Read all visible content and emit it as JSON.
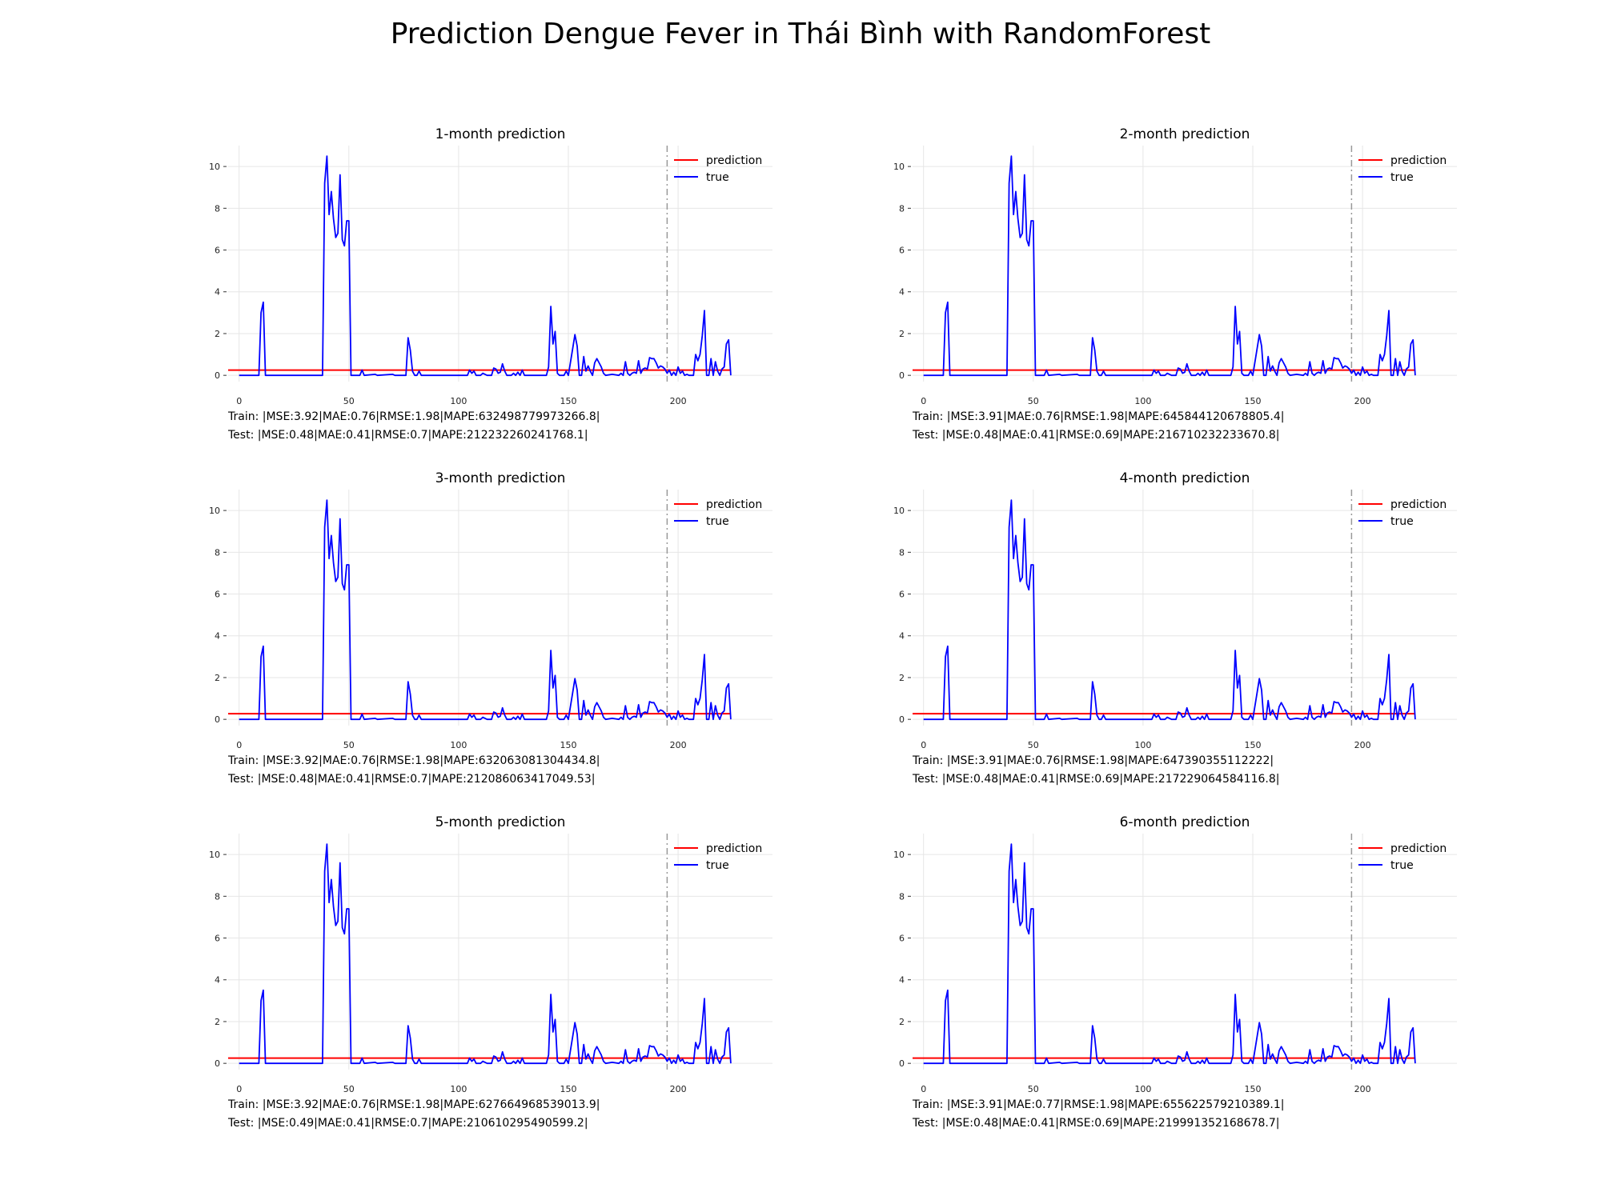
{
  "title": "Prediction Dengue Fever in Thái Bình with RandomForest",
  "colors": {
    "prediction": "#ff0000",
    "true": "#0000ff",
    "grid": "#e6e6e6",
    "split": "#999999"
  },
  "legend": [
    "prediction",
    "true"
  ],
  "chart_data": [
    {
      "type": "line",
      "title": "1-month prediction",
      "xlim": [
        -5,
        243
      ],
      "ylim": [
        -0.3,
        11
      ],
      "xticks": [
        0,
        50,
        100,
        150,
        200
      ],
      "yticks": [
        0,
        2,
        4,
        6,
        8,
        10
      ],
      "split_x": 195,
      "prediction_value": 0.25,
      "train_metrics": "Train: |MSE:3.92|MAE:0.76|RMSE:1.98|MAPE:632498779973266.8|",
      "test_metrics": "Test: |MSE:0.48|MAE:0.41|RMSE:0.7|MAPE:212232260241768.1|"
    },
    {
      "type": "line",
      "title": "2-month prediction",
      "xlim": [
        -5,
        243
      ],
      "ylim": [
        -0.3,
        11
      ],
      "xticks": [
        0,
        50,
        100,
        150,
        200
      ],
      "yticks": [
        0,
        2,
        4,
        6,
        8,
        10
      ],
      "split_x": 195,
      "prediction_value": 0.25,
      "train_metrics": "Train: |MSE:3.91|MAE:0.76|RMSE:1.98|MAPE:645844120678805.4|",
      "test_metrics": "Test: |MSE:0.48|MAE:0.41|RMSE:0.69|MAPE:216710232233670.8|"
    },
    {
      "type": "line",
      "title": "3-month prediction",
      "xlim": [
        -5,
        243
      ],
      "ylim": [
        -0.3,
        11
      ],
      "xticks": [
        0,
        50,
        100,
        150,
        200
      ],
      "yticks": [
        0,
        2,
        4,
        6,
        8,
        10
      ],
      "split_x": 195,
      "prediction_value": 0.27,
      "train_metrics": "Train: |MSE:3.92|MAE:0.76|RMSE:1.98|MAPE:632063081304434.8|",
      "test_metrics": "Test: |MSE:0.48|MAE:0.41|RMSE:0.7|MAPE:212086063417049.53|"
    },
    {
      "type": "line",
      "title": "4-month prediction",
      "xlim": [
        -5,
        243
      ],
      "ylim": [
        -0.3,
        11
      ],
      "xticks": [
        0,
        50,
        100,
        150,
        200
      ],
      "yticks": [
        0,
        2,
        4,
        6,
        8,
        10
      ],
      "split_x": 195,
      "prediction_value": 0.27,
      "train_metrics": "Train: |MSE:3.91|MAE:0.76|RMSE:1.98|MAPE:647390355112222|",
      "test_metrics": "Test: |MSE:0.48|MAE:0.41|RMSE:0.69|MAPE:217229064584116.8|"
    },
    {
      "type": "line",
      "title": "5-month prediction",
      "xlim": [
        -5,
        243
      ],
      "ylim": [
        -0.3,
        11
      ],
      "xticks": [
        0,
        50,
        100,
        150,
        200
      ],
      "yticks": [
        0,
        2,
        4,
        6,
        8,
        10
      ],
      "split_x": 195,
      "prediction_value": 0.25,
      "train_metrics": "Train: |MSE:3.92|MAE:0.76|RMSE:1.98|MAPE:627664968539013.9|",
      "test_metrics": "Test: |MSE:0.49|MAE:0.41|RMSE:0.7|MAPE:210610295490599.2|"
    },
    {
      "type": "line",
      "title": "6-month prediction",
      "xlim": [
        -5,
        243
      ],
      "ylim": [
        -0.3,
        11
      ],
      "xticks": [
        0,
        50,
        100,
        150,
        200
      ],
      "yticks": [
        0,
        2,
        4,
        6,
        8,
        10
      ],
      "split_x": 195,
      "prediction_value": 0.25,
      "train_metrics": "Train: |MSE:3.91|MAE:0.77|RMSE:1.98|MAPE:655622579210389.1|",
      "test_metrics": "Test: |MSE:0.48|MAE:0.41|RMSE:0.69|MAPE:219991352168678.7|"
    }
  ],
  "true_series": [
    [
      0,
      0
    ],
    [
      9,
      0
    ],
    [
      10,
      3.0
    ],
    [
      11,
      3.5
    ],
    [
      12,
      0
    ],
    [
      38,
      0
    ],
    [
      39,
      9.2
    ],
    [
      40,
      10.5
    ],
    [
      41,
      7.7
    ],
    [
      42,
      8.8
    ],
    [
      43,
      7.5
    ],
    [
      44,
      6.6
    ],
    [
      45,
      6.8
    ],
    [
      46,
      9.6
    ],
    [
      47,
      6.5
    ],
    [
      48,
      6.2
    ],
    [
      49,
      7.4
    ],
    [
      50,
      7.4
    ],
    [
      51,
      0
    ],
    [
      55,
      0
    ],
    [
      56,
      0.25
    ],
    [
      57,
      0
    ],
    [
      62,
      0.05
    ],
    [
      63,
      0
    ],
    [
      70,
      0.05
    ],
    [
      71,
      0
    ],
    [
      76,
      0
    ],
    [
      77,
      1.8
    ],
    [
      78,
      1.2
    ],
    [
      79,
      0.2
    ],
    [
      80,
      0
    ],
    [
      81,
      0
    ],
    [
      82,
      0.2
    ],
    [
      83,
      0
    ],
    [
      104,
      0
    ],
    [
      105,
      0.25
    ],
    [
      106,
      0.1
    ],
    [
      107,
      0.2
    ],
    [
      108,
      0
    ],
    [
      110,
      0
    ],
    [
      111,
      0.1
    ],
    [
      113,
      0
    ],
    [
      115,
      0
    ],
    [
      116,
      0.35
    ],
    [
      117,
      0.3
    ],
    [
      118,
      0.1
    ],
    [
      119,
      0.15
    ],
    [
      120,
      0.55
    ],
    [
      121,
      0.2
    ],
    [
      122,
      0
    ],
    [
      124,
      0
    ],
    [
      125,
      0.1
    ],
    [
      126,
      0
    ],
    [
      127,
      0.15
    ],
    [
      128,
      0
    ],
    [
      129,
      0.25
    ],
    [
      130,
      0
    ],
    [
      140,
      0
    ],
    [
      141,
      0.4
    ],
    [
      142,
      3.3
    ],
    [
      143,
      1.5
    ],
    [
      144,
      2.1
    ],
    [
      145,
      0.1
    ],
    [
      146,
      0
    ],
    [
      148,
      0
    ],
    [
      149,
      0.2
    ],
    [
      150,
      0
    ],
    [
      152,
      1.3
    ],
    [
      153,
      1.95
    ],
    [
      154,
      1.4
    ],
    [
      155,
      0
    ],
    [
      156,
      0
    ],
    [
      157,
      0.9
    ],
    [
      158,
      0.2
    ],
    [
      159,
      0.45
    ],
    [
      160,
      0.2
    ],
    [
      161,
      0
    ],
    [
      162,
      0.6
    ],
    [
      163,
      0.8
    ],
    [
      164,
      0.6
    ],
    [
      165,
      0.4
    ],
    [
      166,
      0.1
    ],
    [
      167,
      0
    ],
    [
      170,
      0.05
    ],
    [
      173,
      0
    ],
    [
      174,
      0.1
    ],
    [
      175,
      0
    ],
    [
      176,
      0.65
    ],
    [
      177,
      0.1
    ],
    [
      178,
      0
    ],
    [
      179,
      0.1
    ],
    [
      180,
      0.15
    ],
    [
      181,
      0.1
    ],
    [
      182,
      0.7
    ],
    [
      183,
      0.1
    ],
    [
      184,
      0.3
    ],
    [
      185,
      0.35
    ],
    [
      186,
      0.3
    ],
    [
      187,
      0.85
    ],
    [
      188,
      0.8
    ],
    [
      189,
      0.8
    ],
    [
      190,
      0.6
    ],
    [
      191,
      0.35
    ],
    [
      192,
      0.45
    ],
    [
      193,
      0.4
    ],
    [
      194,
      0.3
    ],
    [
      195,
      0.1
    ],
    [
      196,
      0.25
    ],
    [
      197,
      0
    ],
    [
      198,
      0.15
    ],
    [
      199,
      0
    ],
    [
      200,
      0.4
    ],
    [
      201,
      0.1
    ],
    [
      202,
      0.2
    ],
    [
      203,
      0
    ],
    [
      204,
      0.05
    ],
    [
      205,
      0
    ],
    [
      207,
      0
    ],
    [
      208,
      1.0
    ],
    [
      209,
      0.7
    ],
    [
      210,
      1.0
    ],
    [
      211,
      1.9
    ],
    [
      212,
      3.1
    ],
    [
      213,
      0
    ],
    [
      214,
      0
    ],
    [
      215,
      0.8
    ],
    [
      216,
      0
    ],
    [
      217,
      0.65
    ],
    [
      218,
      0.2
    ],
    [
      219,
      0
    ],
    [
      220,
      0.3
    ],
    [
      221,
      0.4
    ],
    [
      222,
      1.5
    ],
    [
      223,
      1.7
    ],
    [
      224,
      0
    ]
  ]
}
